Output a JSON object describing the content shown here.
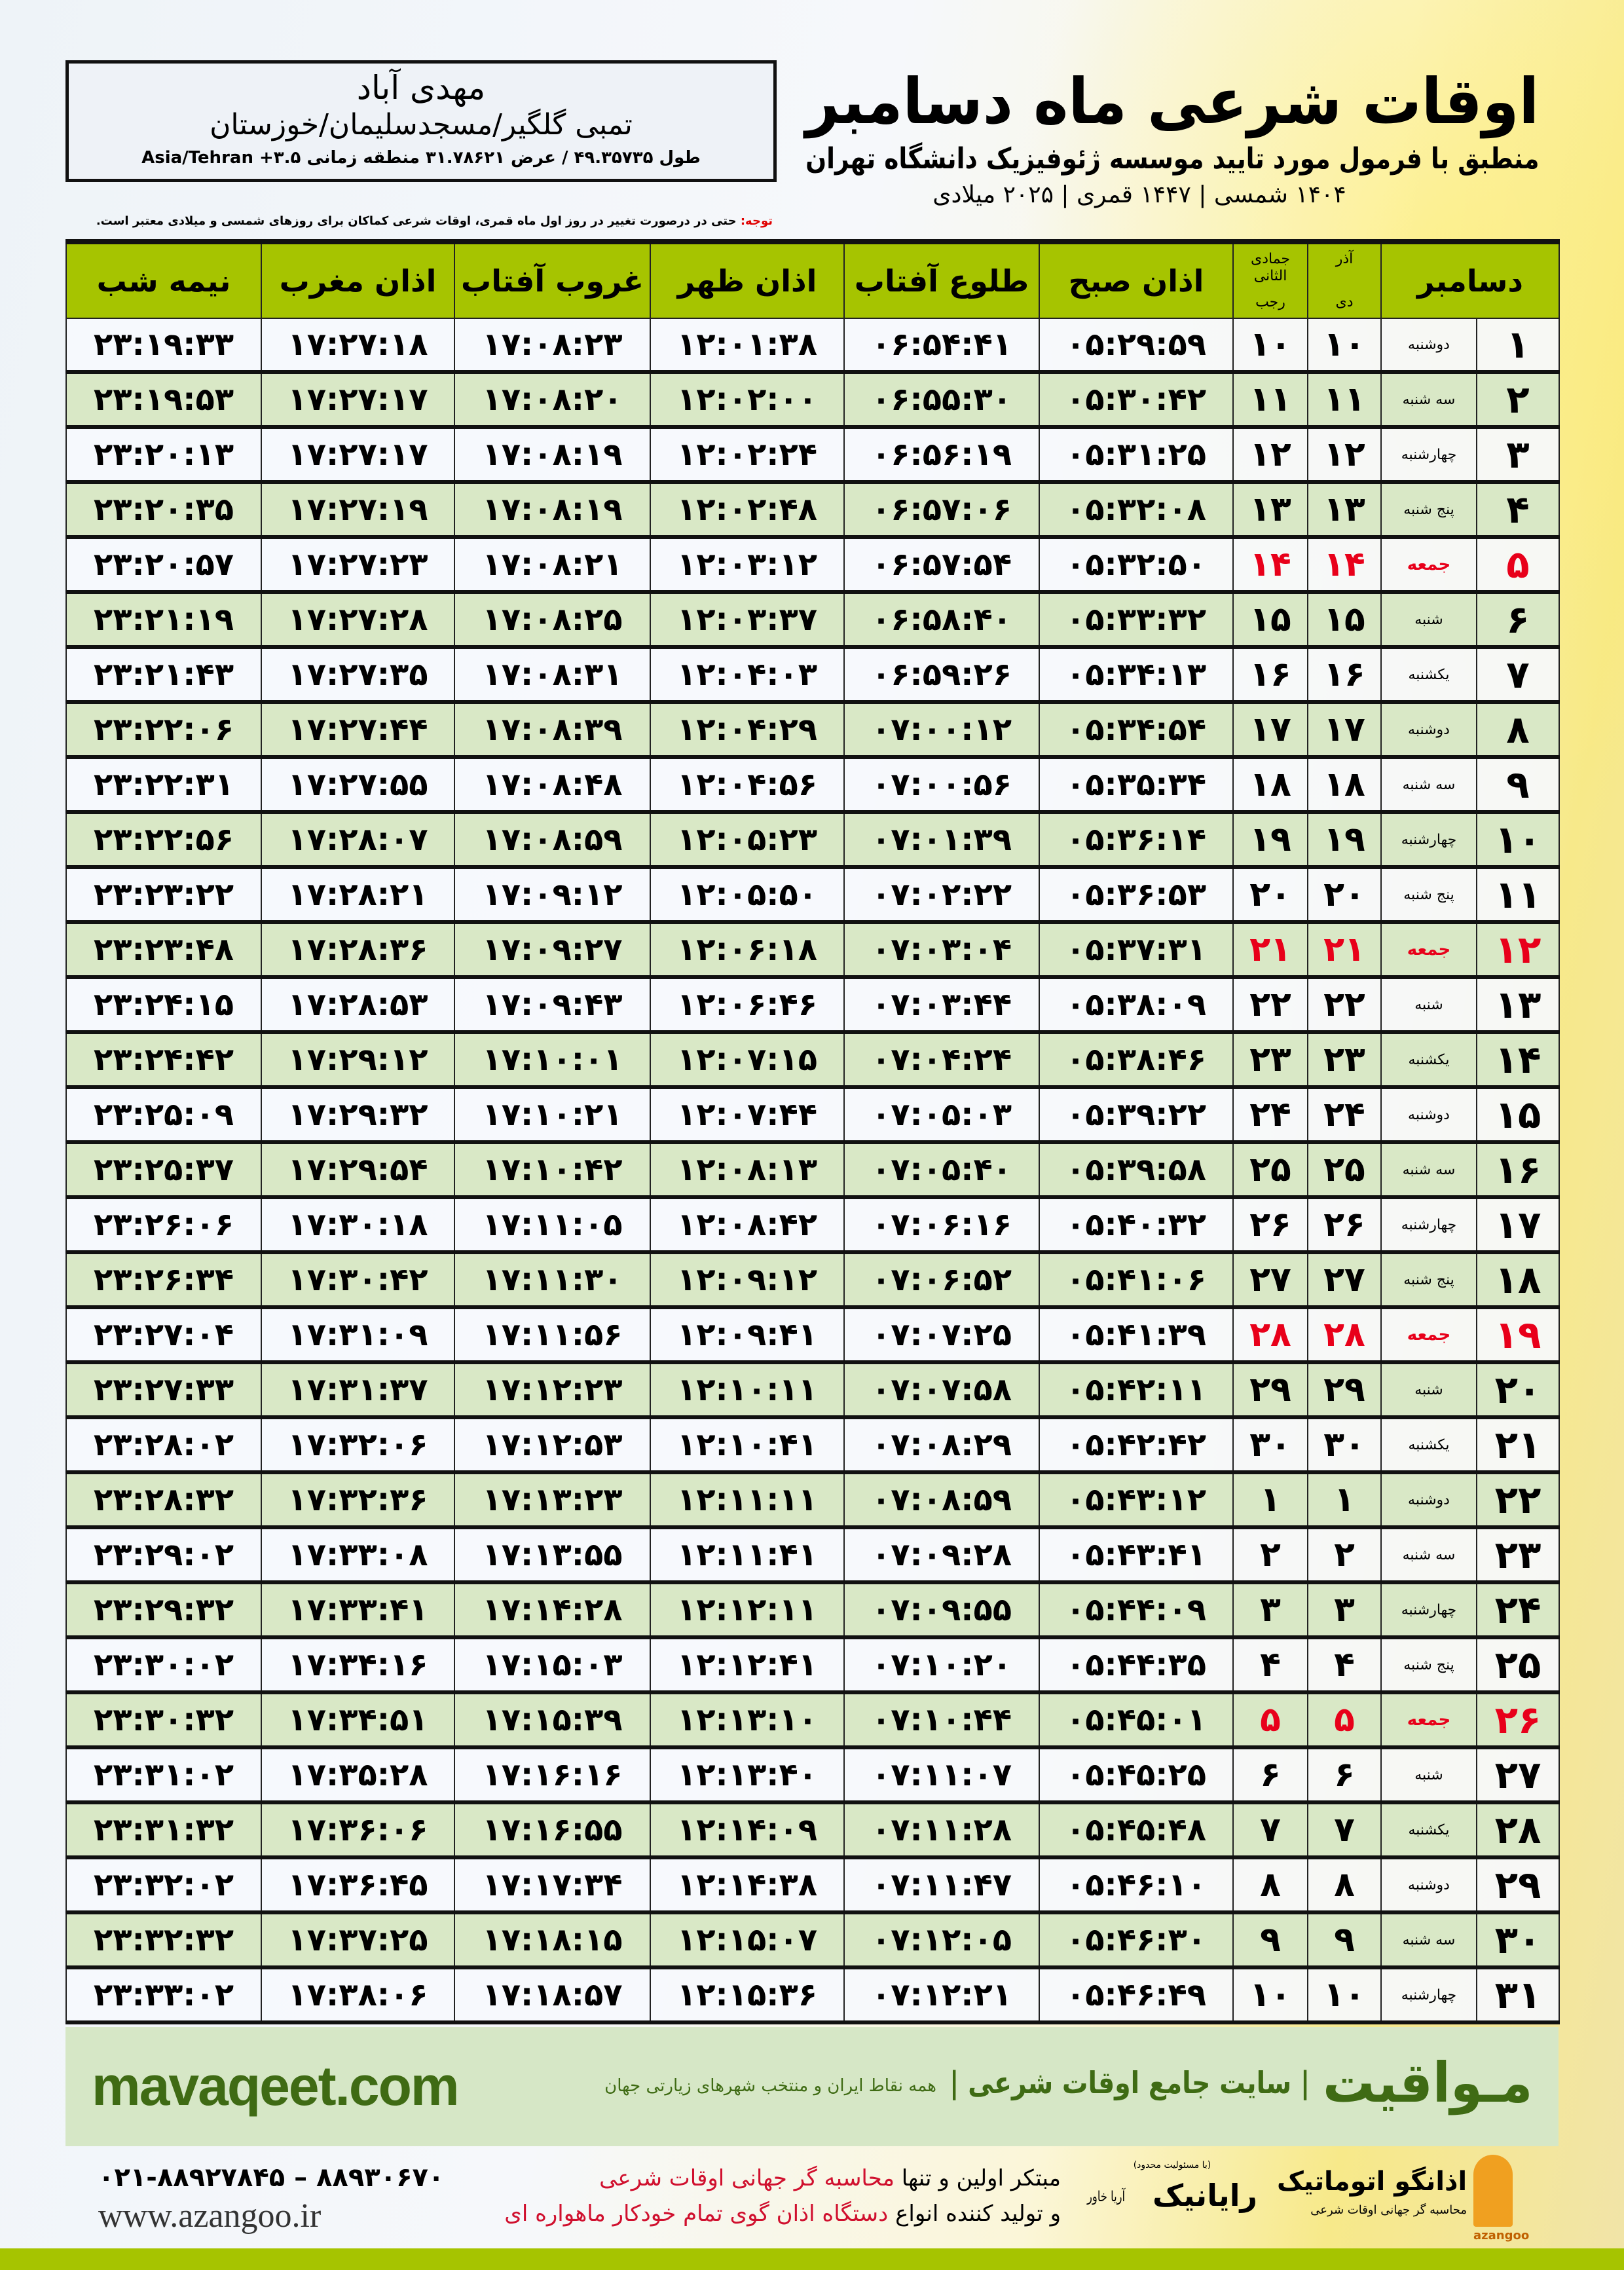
{
  "header": {
    "title": "اوقات شرعی ماه دسامبر",
    "subtitle": "منطبق با فرمول مورد تایید موسسه ژئوفیزیک دانشگاه تهران",
    "years": "۱۴۰۴ شمسی | ۱۴۴۷ قمری | ۲۰۲۵ میلادی"
  },
  "location": {
    "name": "مهدی آباد",
    "path": "تمبی گلگیر/مسجدسلیمان/خوزستان",
    "coords": "طول ۴۹.۳۵۷۳۵ / عرض ۳۱.۷۸۶۲۱ منطقه زمانی ۳.۵+ Asia/Tehran"
  },
  "note": {
    "label": "توجه:",
    "text": " حتی در درصورت تغییر در روز اول ماه قمری، اوقات شرعی کماکان برای روزهای شمسی و میلادی معتبر است."
  },
  "table": {
    "columns": {
      "month": "دسامبر",
      "dey_top": "آذر",
      "dey": "دی",
      "rajab_top": "جمادی الثانی",
      "rajab": "رجب",
      "fajr": "اذان صبح",
      "sunrise": "طلوع آفتاب",
      "dhuhr": "اذان ظهر",
      "sunset": "غروب آفتاب",
      "maghrib": "اذان مغرب",
      "midnight": "نیمه شب"
    },
    "holiday_color": "#e8001a",
    "rows": [
      [
        "۱",
        "دوشنبه",
        "۱۰",
        "۱۰",
        "۰۵:۲۹:۵۹",
        "۰۶:۵۴:۴۱",
        "۱۲:۰۱:۳۸",
        "۱۷:۰۸:۲۳",
        "۱۷:۲۷:۱۸",
        "۲۳:۱۹:۳۳"
      ],
      [
        "۲",
        "سه شنبه",
        "۱۱",
        "۱۱",
        "۰۵:۳۰:۴۲",
        "۰۶:۵۵:۳۰",
        "۱۲:۰۲:۰۰",
        "۱۷:۰۸:۲۰",
        "۱۷:۲۷:۱۷",
        "۲۳:۱۹:۵۳"
      ],
      [
        "۳",
        "چهارشنبه",
        "۱۲",
        "۱۲",
        "۰۵:۳۱:۲۵",
        "۰۶:۵۶:۱۹",
        "۱۲:۰۲:۲۴",
        "۱۷:۰۸:۱۹",
        "۱۷:۲۷:۱۷",
        "۲۳:۲۰:۱۳"
      ],
      [
        "۴",
        "پنج شنبه",
        "۱۳",
        "۱۳",
        "۰۵:۳۲:۰۸",
        "۰۶:۵۷:۰۶",
        "۱۲:۰۲:۴۸",
        "۱۷:۰۸:۱۹",
        "۱۷:۲۷:۱۹",
        "۲۳:۲۰:۳۵"
      ],
      [
        "۵",
        "جمعه",
        "۱۴",
        "۱۴",
        "۰۵:۳۲:۵۰",
        "۰۶:۵۷:۵۴",
        "۱۲:۰۳:۱۲",
        "۱۷:۰۸:۲۱",
        "۱۷:۲۷:۲۳",
        "۲۳:۲۰:۵۷"
      ],
      [
        "۶",
        "شنبه",
        "۱۵",
        "۱۵",
        "۰۵:۳۳:۳۲",
        "۰۶:۵۸:۴۰",
        "۱۲:۰۳:۳۷",
        "۱۷:۰۸:۲۵",
        "۱۷:۲۷:۲۸",
        "۲۳:۲۱:۱۹"
      ],
      [
        "۷",
        "یکشنبه",
        "۱۶",
        "۱۶",
        "۰۵:۳۴:۱۳",
        "۰۶:۵۹:۲۶",
        "۱۲:۰۴:۰۳",
        "۱۷:۰۸:۳۱",
        "۱۷:۲۷:۳۵",
        "۲۳:۲۱:۴۳"
      ],
      [
        "۸",
        "دوشنبه",
        "۱۷",
        "۱۷",
        "۰۵:۳۴:۵۴",
        "۰۷:۰۰:۱۲",
        "۱۲:۰۴:۲۹",
        "۱۷:۰۸:۳۹",
        "۱۷:۲۷:۴۴",
        "۲۳:۲۲:۰۶"
      ],
      [
        "۹",
        "سه شنبه",
        "۱۸",
        "۱۸",
        "۰۵:۳۵:۳۴",
        "۰۷:۰۰:۵۶",
        "۱۲:۰۴:۵۶",
        "۱۷:۰۸:۴۸",
        "۱۷:۲۷:۵۵",
        "۲۳:۲۲:۳۱"
      ],
      [
        "۱۰",
        "چهارشنبه",
        "۱۹",
        "۱۹",
        "۰۵:۳۶:۱۴",
        "۰۷:۰۱:۳۹",
        "۱۲:۰۵:۲۳",
        "۱۷:۰۸:۵۹",
        "۱۷:۲۸:۰۷",
        "۲۳:۲۲:۵۶"
      ],
      [
        "۱۱",
        "پنج شنبه",
        "۲۰",
        "۲۰",
        "۰۵:۳۶:۵۳",
        "۰۷:۰۲:۲۲",
        "۱۲:۰۵:۵۰",
        "۱۷:۰۹:۱۲",
        "۱۷:۲۸:۲۱",
        "۲۳:۲۳:۲۲"
      ],
      [
        "۱۲",
        "جمعه",
        "۲۱",
        "۲۱",
        "۰۵:۳۷:۳۱",
        "۰۷:۰۳:۰۴",
        "۱۲:۰۶:۱۸",
        "۱۷:۰۹:۲۷",
        "۱۷:۲۸:۳۶",
        "۲۳:۲۳:۴۸"
      ],
      [
        "۱۳",
        "شنبه",
        "۲۲",
        "۲۲",
        "۰۵:۳۸:۰۹",
        "۰۷:۰۳:۴۴",
        "۱۲:۰۶:۴۶",
        "۱۷:۰۹:۴۳",
        "۱۷:۲۸:۵۳",
        "۲۳:۲۴:۱۵"
      ],
      [
        "۱۴",
        "یکشنبه",
        "۲۳",
        "۲۳",
        "۰۵:۳۸:۴۶",
        "۰۷:۰۴:۲۴",
        "۱۲:۰۷:۱۵",
        "۱۷:۱۰:۰۱",
        "۱۷:۲۹:۱۲",
        "۲۳:۲۴:۴۲"
      ],
      [
        "۱۵",
        "دوشنبه",
        "۲۴",
        "۲۴",
        "۰۵:۳۹:۲۲",
        "۰۷:۰۵:۰۳",
        "۱۲:۰۷:۴۴",
        "۱۷:۱۰:۲۱",
        "۱۷:۲۹:۳۲",
        "۲۳:۲۵:۰۹"
      ],
      [
        "۱۶",
        "سه شنبه",
        "۲۵",
        "۲۵",
        "۰۵:۳۹:۵۸",
        "۰۷:۰۵:۴۰",
        "۱۲:۰۸:۱۳",
        "۱۷:۱۰:۴۲",
        "۱۷:۲۹:۵۴",
        "۲۳:۲۵:۳۷"
      ],
      [
        "۱۷",
        "چهارشنبه",
        "۲۶",
        "۲۶",
        "۰۵:۴۰:۳۲",
        "۰۷:۰۶:۱۶",
        "۱۲:۰۸:۴۲",
        "۱۷:۱۱:۰۵",
        "۱۷:۳۰:۱۸",
        "۲۳:۲۶:۰۶"
      ],
      [
        "۱۸",
        "پنج شنبه",
        "۲۷",
        "۲۷",
        "۰۵:۴۱:۰۶",
        "۰۷:۰۶:۵۲",
        "۱۲:۰۹:۱۲",
        "۱۷:۱۱:۳۰",
        "۱۷:۳۰:۴۲",
        "۲۳:۲۶:۳۴"
      ],
      [
        "۱۹",
        "جمعه",
        "۲۸",
        "۲۸",
        "۰۵:۴۱:۳۹",
        "۰۷:۰۷:۲۵",
        "۱۲:۰۹:۴۱",
        "۱۷:۱۱:۵۶",
        "۱۷:۳۱:۰۹",
        "۲۳:۲۷:۰۴"
      ],
      [
        "۲۰",
        "شنبه",
        "۲۹",
        "۲۹",
        "۰۵:۴۲:۱۱",
        "۰۷:۰۷:۵۸",
        "۱۲:۱۰:۱۱",
        "۱۷:۱۲:۲۳",
        "۱۷:۳۱:۳۷",
        "۲۳:۲۷:۳۳"
      ],
      [
        "۲۱",
        "یکشنبه",
        "۳۰",
        "۳۰",
        "۰۵:۴۲:۴۲",
        "۰۷:۰۸:۲۹",
        "۱۲:۱۰:۴۱",
        "۱۷:۱۲:۵۳",
        "۱۷:۳۲:۰۶",
        "۲۳:۲۸:۰۲"
      ],
      [
        "۲۲",
        "دوشنبه",
        "۱",
        "۱",
        "۰۵:۴۳:۱۲",
        "۰۷:۰۸:۵۹",
        "۱۲:۱۱:۱۱",
        "۱۷:۱۳:۲۳",
        "۱۷:۳۲:۳۶",
        "۲۳:۲۸:۳۲"
      ],
      [
        "۲۳",
        "سه شنبه",
        "۲",
        "۲",
        "۰۵:۴۳:۴۱",
        "۰۷:۰۹:۲۸",
        "۱۲:۱۱:۴۱",
        "۱۷:۱۳:۵۵",
        "۱۷:۳۳:۰۸",
        "۲۳:۲۹:۰۲"
      ],
      [
        "۲۴",
        "چهارشنبه",
        "۳",
        "۳",
        "۰۵:۴۴:۰۹",
        "۰۷:۰۹:۵۵",
        "۱۲:۱۲:۱۱",
        "۱۷:۱۴:۲۸",
        "۱۷:۳۳:۴۱",
        "۲۳:۲۹:۳۲"
      ],
      [
        "۲۵",
        "پنج شنبه",
        "۴",
        "۴",
        "۰۵:۴۴:۳۵",
        "۰۷:۱۰:۲۰",
        "۱۲:۱۲:۴۱",
        "۱۷:۱۵:۰۳",
        "۱۷:۳۴:۱۶",
        "۲۳:۳۰:۰۲"
      ],
      [
        "۲۶",
        "جمعه",
        "۵",
        "۵",
        "۰۵:۴۵:۰۱",
        "۰۷:۱۰:۴۴",
        "۱۲:۱۳:۱۰",
        "۱۷:۱۵:۳۹",
        "۱۷:۳۴:۵۱",
        "۲۳:۳۰:۳۲"
      ],
      [
        "۲۷",
        "شنبه",
        "۶",
        "۶",
        "۰۵:۴۵:۲۵",
        "۰۷:۱۱:۰۷",
        "۱۲:۱۳:۴۰",
        "۱۷:۱۶:۱۶",
        "۱۷:۳۵:۲۸",
        "۲۳:۳۱:۰۲"
      ],
      [
        "۲۸",
        "یکشنبه",
        "۷",
        "۷",
        "۰۵:۴۵:۴۸",
        "۰۷:۱۱:۲۸",
        "۱۲:۱۴:۰۹",
        "۱۷:۱۶:۵۵",
        "۱۷:۳۶:۰۶",
        "۲۳:۳۱:۳۲"
      ],
      [
        "۲۹",
        "دوشنبه",
        "۸",
        "۸",
        "۰۵:۴۶:۱۰",
        "۰۷:۱۱:۴۷",
        "۱۲:۱۴:۳۸",
        "۱۷:۱۷:۳۴",
        "۱۷:۳۶:۴۵",
        "۲۳:۳۲:۰۲"
      ],
      [
        "۳۰",
        "سه شنبه",
        "۹",
        "۹",
        "۰۵:۴۶:۳۰",
        "۰۷:۱۲:۰۵",
        "۱۲:۱۵:۰۷",
        "۱۷:۱۸:۱۵",
        "۱۷:۳۷:۲۵",
        "۲۳:۳۲:۳۲"
      ],
      [
        "۳۱",
        "چهارشنبه",
        "۱۰",
        "۱۰",
        "۰۵:۴۶:۴۹",
        "۰۷:۱۲:۲۱",
        "۱۲:۱۵:۳۶",
        "۱۷:۱۸:۵۷",
        "۱۷:۳۸:۰۶",
        "۲۳:۳۳:۰۲"
      ]
    ]
  },
  "footer": {
    "mavaqeet_url": "mavaqeet.com",
    "mavaqeet_logo": "مـواقیت",
    "mavaqeet_tagline": "| سایت جامع اوقات شرعی |",
    "mavaqeet_sub": "همه نقاط ایران و منتخب شهرهای زیارتی جهان",
    "phone": "۰۲۱-۸۸۹۲۷۸۴۵ – ۸۸۹۳۰۶۷۰",
    "website": "www.azangoo.ir",
    "promo_line1_a": "مبتکر اولین و تنها ",
    "promo_line1_b": "محاسبه گر جهانی اوقات شرعی",
    "promo_line2_a": "و تولید کننده انواع ",
    "promo_line2_b": "دستگاه اذان گوی تمام خودکار ماهواره ای",
    "raynik_small": "(با مسئولیت محدود)",
    "raynik_name": "رایانیک",
    "raynik_side": "آریا خاور",
    "azangoo_name": "اذانگو اتوماتیک",
    "azangoo_tag": "محاسبه گر جهانی اوقات شرعی",
    "azangoo_latin": "azangoo"
  },
  "colors": {
    "header_green": "#a6c400",
    "row_green": "#d9e8c6",
    "footer_green": "#3f6b14",
    "accent_red": "#d0102e"
  }
}
